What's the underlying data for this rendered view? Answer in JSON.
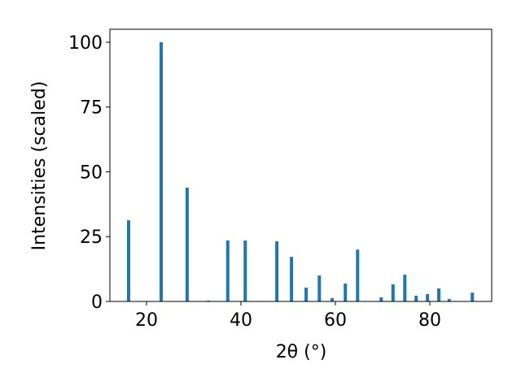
{
  "chart_data": {
    "type": "bar",
    "x_label": "2θ (°)",
    "y_label": "Intensities (scaled)",
    "x": [
      16.2,
      23.1,
      28.6,
      33.1,
      37.2,
      40.9,
      47.6,
      50.7,
      53.8,
      56.6,
      59.3,
      62.1,
      64.7,
      69.7,
      72.2,
      74.7,
      77.1,
      79.5,
      81.9,
      84.1,
      89.0
    ],
    "values": [
      31.3,
      100,
      43.9,
      0.3,
      23.5,
      23.5,
      23.2,
      17.2,
      5.3,
      10,
      1.3,
      6.9,
      20,
      1.6,
      6.6,
      10.3,
      2.2,
      2.8,
      5,
      0.9,
      3.4
    ],
    "color": "#1f77b4",
    "xlim": [
      12.24,
      93.1
    ],
    "xticks": [
      20,
      40,
      60,
      80
    ],
    "ylim": [
      0,
      105
    ],
    "yticks": [
      0,
      25,
      50,
      75,
      100
    ]
  }
}
